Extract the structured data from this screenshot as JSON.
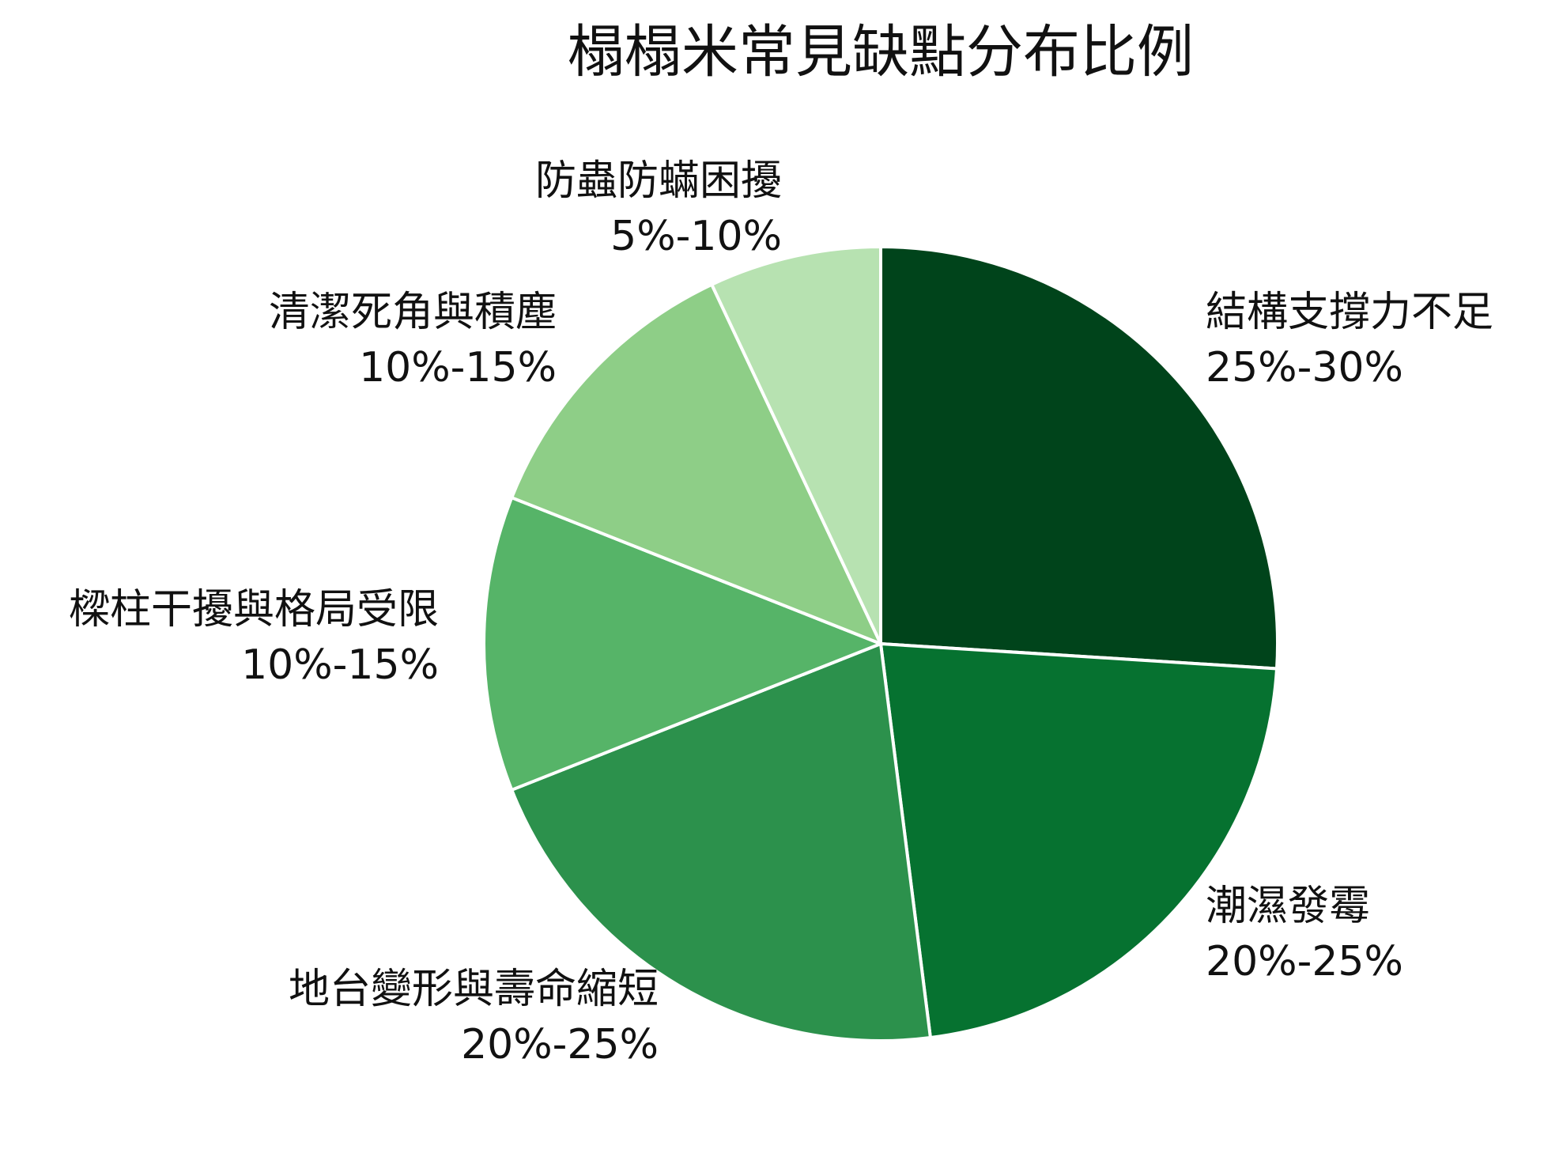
{
  "chart_data": {
    "type": "pie",
    "title": "榻榻米常見缺點分布比例",
    "categories": [
      "結構支撐力不足",
      "潮濕發霉",
      "地台變形與壽命縮短",
      "樑柱干擾與格局受限",
      "清潔死角與積塵",
      "防蟲防蟎困擾"
    ],
    "values": [
      26,
      22,
      21,
      12,
      12,
      7
    ],
    "value_labels": [
      "25%-30%",
      "20%-25%",
      "20%-25%",
      "10%-15%",
      "10%-15%",
      "5%-10%"
    ],
    "colors": [
      "#00441b",
      "#067230",
      "#2c914c",
      "#56b468",
      "#8ece87",
      "#b7e2b1"
    ]
  }
}
